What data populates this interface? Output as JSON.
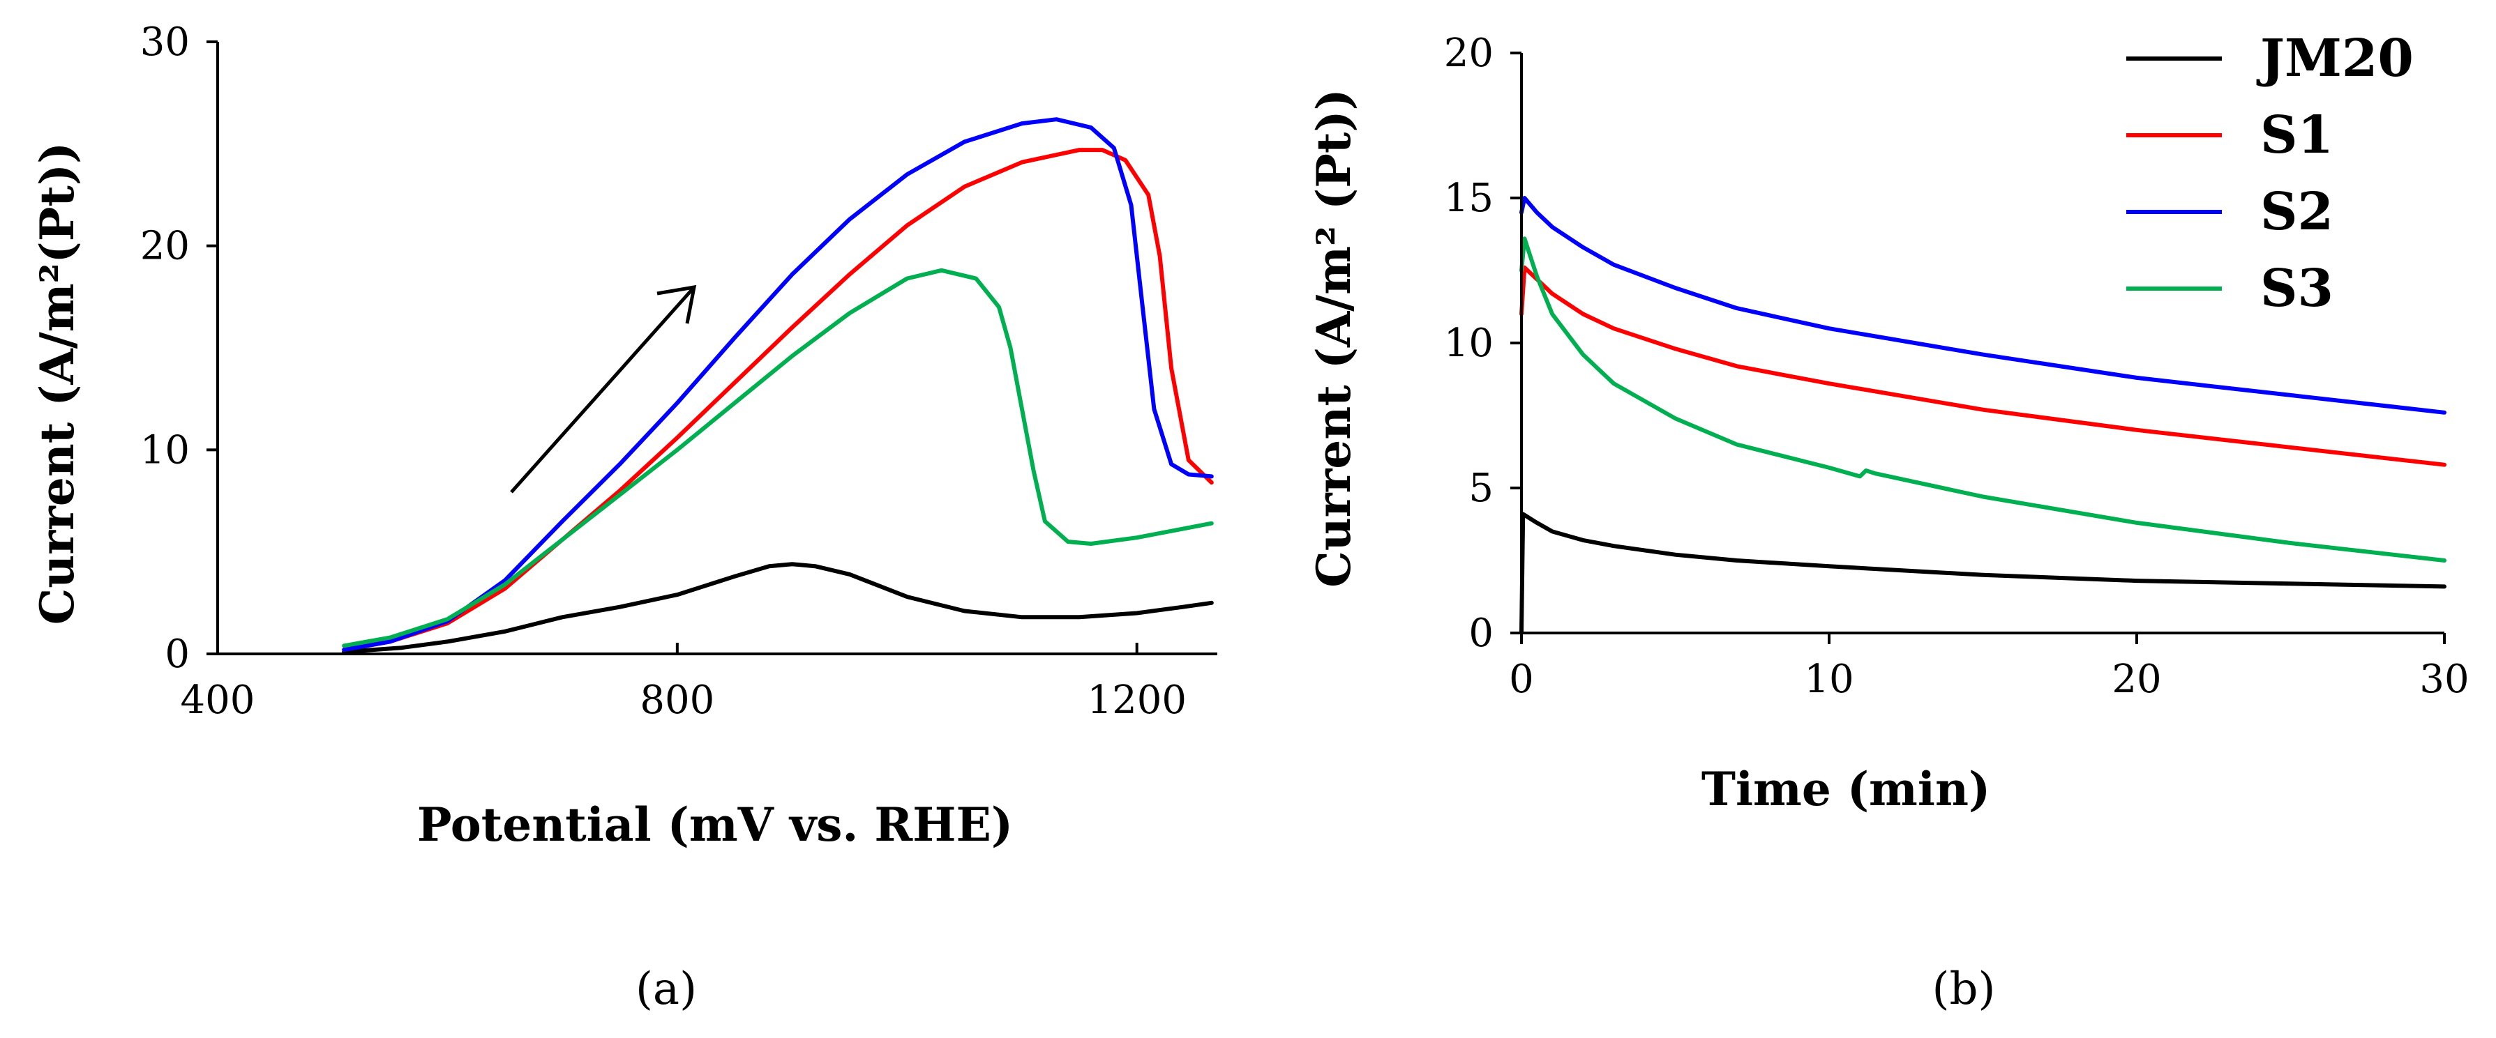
{
  "chart_data": [
    {
      "type": "line",
      "panel_label": "(a)",
      "xlabel": "Potential (mV vs. RHE)",
      "ylabel": "Current (A/m²(Pt))",
      "xlim": [
        400,
        1270
      ],
      "ylim": [
        0,
        30
      ],
      "xticks": [
        400,
        800,
        1200
      ],
      "yticks": [
        0,
        10,
        20,
        30
      ],
      "annotation": "arrow indicating forward (anodic) scan direction",
      "series": [
        {
          "name": "JM20",
          "color": "#000000",
          "x": [
            510,
            560,
            600,
            650,
            700,
            750,
            800,
            850,
            880,
            900,
            920,
            950,
            1000,
            1050,
            1100,
            1150,
            1200,
            1240,
            1265
          ],
          "y": [
            0.1,
            0.3,
            0.6,
            1.1,
            1.8,
            2.3,
            2.9,
            3.8,
            4.3,
            4.4,
            4.3,
            3.9,
            2.8,
            2.1,
            1.8,
            1.8,
            2.0,
            2.3,
            2.5
          ]
        },
        {
          "name": "S1",
          "color": "#ff0000",
          "x": [
            510,
            550,
            600,
            650,
            700,
            750,
            800,
            850,
            900,
            950,
            1000,
            1050,
            1100,
            1150,
            1170,
            1190,
            1210,
            1220,
            1230,
            1245,
            1265
          ],
          "y": [
            0.2,
            0.6,
            1.5,
            3.2,
            5.6,
            8.0,
            10.6,
            13.3,
            16.0,
            18.6,
            21.0,
            22.9,
            24.1,
            24.7,
            24.7,
            24.2,
            22.5,
            19.5,
            14.0,
            9.5,
            8.4
          ]
        },
        {
          "name": "S2",
          "color": "#0000ff",
          "x": [
            510,
            550,
            600,
            650,
            700,
            750,
            800,
            850,
            900,
            950,
            1000,
            1050,
            1100,
            1130,
            1160,
            1180,
            1195,
            1205,
            1215,
            1230,
            1245,
            1265
          ],
          "y": [
            0.2,
            0.6,
            1.6,
            3.6,
            6.5,
            9.3,
            12.3,
            15.5,
            18.6,
            21.3,
            23.5,
            25.1,
            26.0,
            26.2,
            25.8,
            24.8,
            22.0,
            17.0,
            12.0,
            9.3,
            8.8,
            8.7
          ]
        },
        {
          "name": "S3",
          "color": "#00b050",
          "x": [
            510,
            550,
            600,
            650,
            700,
            750,
            800,
            850,
            900,
            950,
            1000,
            1030,
            1060,
            1080,
            1090,
            1100,
            1110,
            1120,
            1140,
            1160,
            1200,
            1265
          ],
          "y": [
            0.4,
            0.8,
            1.7,
            3.4,
            5.6,
            7.8,
            10.0,
            12.3,
            14.6,
            16.7,
            18.4,
            18.8,
            18.4,
            17.0,
            15.0,
            12.0,
            9.0,
            6.5,
            5.5,
            5.4,
            5.7,
            6.4
          ]
        }
      ]
    },
    {
      "type": "line",
      "panel_label": "(b)",
      "xlabel": "Time (min)",
      "ylabel": "Current (A/m² (Pt))",
      "xlim": [
        0,
        30
      ],
      "ylim": [
        0,
        20
      ],
      "xticks": [
        0,
        10,
        20,
        30
      ],
      "yticks": [
        0,
        5,
        10,
        15,
        20
      ],
      "legend": {
        "position": "top-right",
        "entries": [
          "JM20",
          "S1",
          "S2",
          "S3"
        ]
      },
      "series": [
        {
          "name": "JM20",
          "color": "#000000",
          "x": [
            0,
            0.05,
            0.5,
            1,
            2,
            3,
            5,
            7,
            10,
            15,
            20,
            25,
            30
          ],
          "y": [
            0,
            4.1,
            3.8,
            3.5,
            3.2,
            3.0,
            2.7,
            2.5,
            2.3,
            2.0,
            1.8,
            1.7,
            1.6
          ]
        },
        {
          "name": "S1",
          "color": "#ff0000",
          "x": [
            0,
            0.1,
            0.5,
            1,
            2,
            3,
            5,
            7,
            10,
            15,
            20,
            25,
            30
          ],
          "y": [
            11.0,
            12.6,
            12.2,
            11.7,
            11.0,
            10.5,
            9.8,
            9.2,
            8.6,
            7.7,
            7.0,
            6.4,
            5.8
          ]
        },
        {
          "name": "S2",
          "color": "#0000ff",
          "x": [
            0,
            0.1,
            0.5,
            1,
            2,
            3,
            5,
            7,
            10,
            15,
            20,
            25,
            30
          ],
          "y": [
            14.5,
            15.0,
            14.5,
            14.0,
            13.3,
            12.7,
            11.9,
            11.2,
            10.5,
            9.6,
            8.8,
            8.2,
            7.6
          ]
        },
        {
          "name": "S3",
          "color": "#00b050",
          "x": [
            0,
            0.1,
            0.5,
            1,
            2,
            3,
            5,
            7,
            10,
            11,
            11.2,
            11.5,
            15,
            20,
            25,
            30
          ],
          "y": [
            12.5,
            13.6,
            12.3,
            11.0,
            9.6,
            8.6,
            7.4,
            6.5,
            5.7,
            5.4,
            5.6,
            5.5,
            4.7,
            3.8,
            3.1,
            2.5
          ]
        }
      ]
    }
  ]
}
